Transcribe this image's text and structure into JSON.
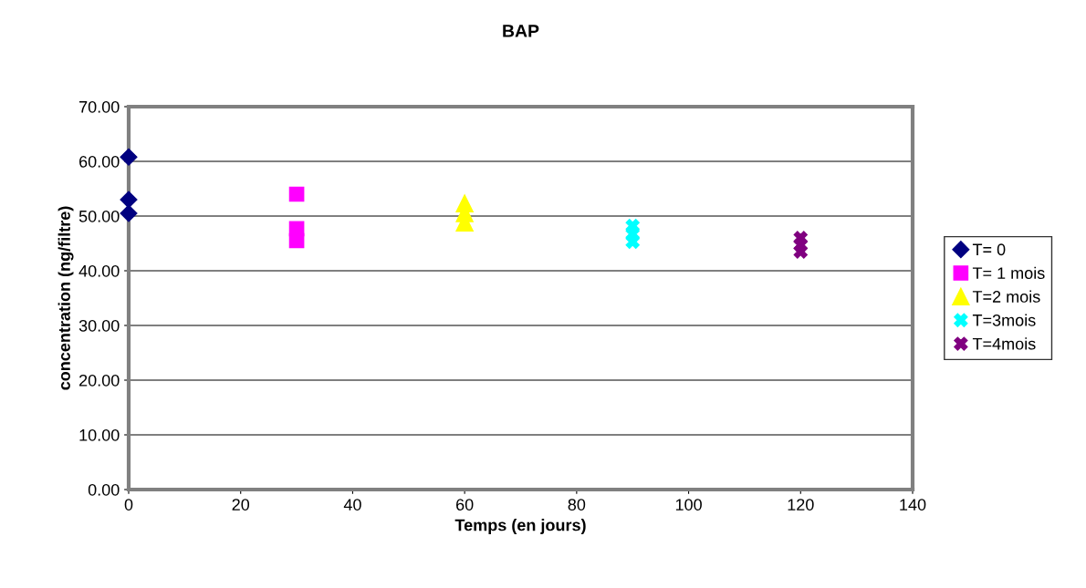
{
  "chart_data": {
    "type": "scatter",
    "title": "BAP",
    "xlabel": "Temps (en jours)",
    "ylabel": "concentration (ng/filtre)",
    "xlim": [
      0,
      140
    ],
    "xticks": [
      0,
      20,
      40,
      60,
      80,
      100,
      120,
      140
    ],
    "ylim": [
      0,
      70
    ],
    "yticks": [
      {
        "value": 0,
        "label": "0.00"
      },
      {
        "value": 10,
        "label": "10.00"
      },
      {
        "value": 20,
        "label": "20.00"
      },
      {
        "value": 30,
        "label": "30.00"
      },
      {
        "value": 40,
        "label": "40.00"
      },
      {
        "value": 50,
        "label": "50.00"
      },
      {
        "value": 60,
        "label": "60.00"
      },
      {
        "value": 70,
        "label": "70.00"
      }
    ],
    "grid": "y",
    "legend": "right",
    "series": [
      {
        "name": "T= 0",
        "color": "#000080",
        "marker": "diamond",
        "x": [
          0,
          0,
          0
        ],
        "values": [
          60.8,
          53.0,
          50.5
        ]
      },
      {
        "name": "T= 1 mois",
        "color": "#ff00ff",
        "marker": "square",
        "x": [
          30,
          30,
          30
        ],
        "values": [
          54.0,
          47.7,
          45.5
        ]
      },
      {
        "name": "T=2 mois",
        "color": "#ffff00",
        "marker": "triangle",
        "x": [
          60,
          60,
          60
        ],
        "values": [
          52.3,
          50.5,
          48.8
        ]
      },
      {
        "name": "T=3mois",
        "color": "#00ffff",
        "marker": "cross",
        "x": [
          90,
          90,
          90
        ],
        "values": [
          48.2,
          46.7,
          45.3
        ]
      },
      {
        "name": "T=4mois",
        "color": "#800080",
        "marker": "cross",
        "x": [
          120,
          120,
          120
        ],
        "values": [
          46.0,
          44.7,
          43.5
        ]
      }
    ]
  }
}
